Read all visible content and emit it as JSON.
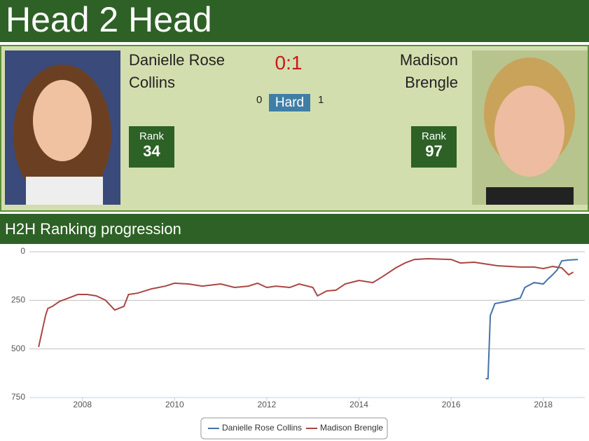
{
  "header": {
    "title": "Head 2 Head"
  },
  "players": [
    {
      "name": "Danielle Rose Collins",
      "rank_label": "Rank",
      "rank": 34
    },
    {
      "name": "Madison Brengle",
      "rank_label": "Rank",
      "rank": 97
    }
  ],
  "score": "0:1",
  "surface": {
    "left": 0,
    "label": "Hard",
    "right": 1
  },
  "section_title": "H2H Ranking progression",
  "chart_data": {
    "type": "line",
    "y_inverted": true,
    "xlim": [
      2006.85,
      2018.9
    ],
    "xticks": [
      2008,
      2010,
      2012,
      2014,
      2016,
      2018
    ],
    "ylim": [
      0,
      750
    ],
    "yticks": [
      0,
      250,
      500,
      750
    ],
    "grid": true,
    "legend": "bottom",
    "series": [
      {
        "name": "Danielle Rose Collins",
        "color": "#4572a7",
        "x": [
          2016.75,
          2016.8,
          2016.85,
          2016.95,
          2017.2,
          2017.5,
          2017.6,
          2017.8,
          2018.0,
          2018.1,
          2018.2,
          2018.3,
          2018.4,
          2018.55,
          2018.75
        ],
        "values": [
          653,
          653,
          328,
          267,
          256,
          238,
          184,
          159,
          166,
          141,
          119,
          94,
          47,
          43,
          40
        ]
      },
      {
        "name": "Madison Brengle",
        "color": "#aa4643",
        "x": [
          2007.05,
          2007.1,
          2007.2,
          2007.25,
          2007.35,
          2007.5,
          2007.7,
          2007.9,
          2008.1,
          2008.3,
          2008.5,
          2008.7,
          2008.9,
          2009.0,
          2009.2,
          2009.5,
          2009.8,
          2010.0,
          2010.3,
          2010.6,
          2011.0,
          2011.3,
          2011.6,
          2011.8,
          2012.0,
          2012.2,
          2012.5,
          2012.7,
          2013.0,
          2013.1,
          2013.3,
          2013.5,
          2013.7,
          2014.0,
          2014.3,
          2014.5,
          2014.8,
          2015.0,
          2015.2,
          2015.5,
          2016.0,
          2016.2,
          2016.5,
          2016.8,
          2017.0,
          2017.5,
          2017.8,
          2018.0,
          2018.2,
          2018.4,
          2018.55,
          2018.65
        ],
        "values": [
          490,
          436,
          328,
          292,
          281,
          256,
          238,
          220,
          220,
          227,
          249,
          300,
          281,
          220,
          213,
          191,
          177,
          162,
          166,
          177,
          166,
          184,
          177,
          162,
          184,
          177,
          184,
          166,
          184,
          227,
          202,
          198,
          166,
          148,
          159,
          130,
          83,
          58,
          40,
          36,
          40,
          58,
          54,
          65,
          72,
          79,
          79,
          87,
          76,
          83,
          119,
          105
        ]
      }
    ]
  }
}
